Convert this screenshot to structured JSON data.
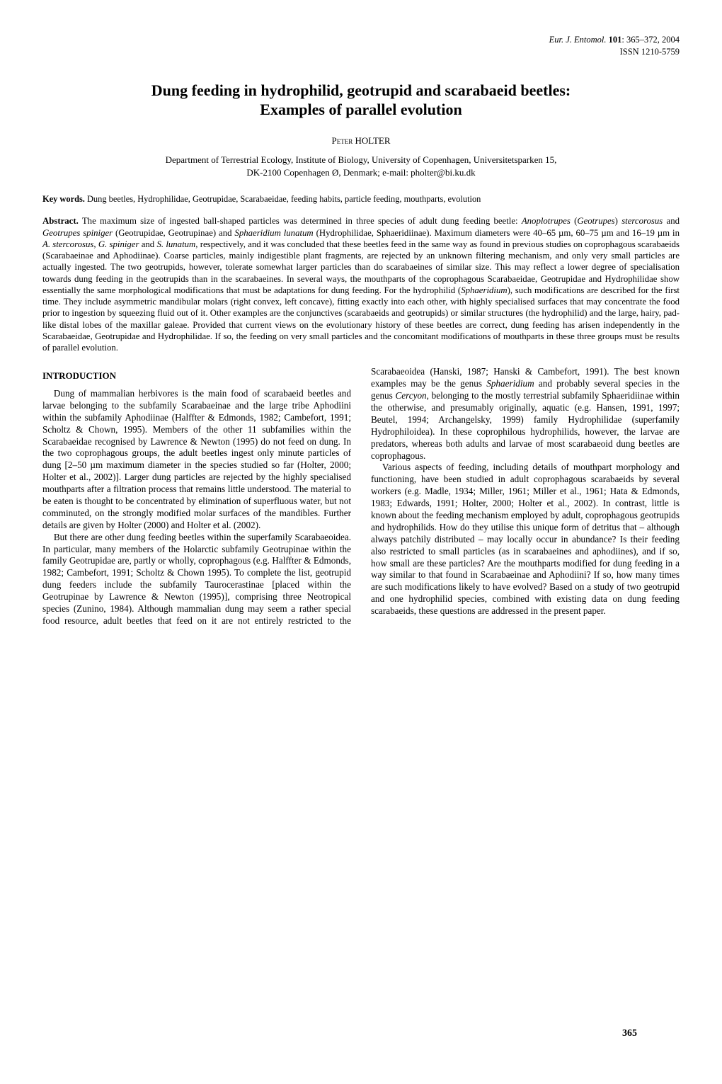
{
  "meta": {
    "journal": "Eur. J. Entomol.",
    "volume": "101",
    "pages": "365–372, 2004",
    "issn": "ISSN 1210-5759"
  },
  "title_line1": "Dung feeding in hydrophilid, geotrupid and scarabaeid beetles:",
  "title_line2": "Examples of parallel evolution",
  "author_first": "Peter",
  "author_last": "HOLTER",
  "affiliation_line1": "Department of Terrestrial Ecology, Institute of Biology, University of Copenhagen, Universitetsparken 15,",
  "affiliation_line2": "DK-2100 Copenhagen Ø, Denmark; e-mail: pholter@bi.ku.dk",
  "keywords_label": "Key words.",
  "keywords_text": " Dung beetles, Hydrophilidae, Geotrupidae, Scarabaeidae, feeding habits, particle feeding, mouthparts, evolution",
  "abstract_label": "Abstract.",
  "abstract_html": " The maximum size of ingested ball-shaped particles was determined in three species of adult dung feeding beetle: <span class=\"italic\">Anoplotrupes</span> (<span class=\"italic\">Geotrupes</span>) <span class=\"italic\">stercorosus</span> and <span class=\"italic\">Geotrupes spiniger</span> (Geotrupidae, Geotrupinae) and <span class=\"italic\">Sphaeridium lunatum</span> (Hydrophilidae, Sphaeridiinae). Maximum diameters were 40–65 µm, 60–75 µm and 16–19 µm in <span class=\"italic\">A. stercorosus</span>, <span class=\"italic\">G. spiniger</span> and <span class=\"italic\">S. lunatum</span>, respectively, and it was concluded that these beetles feed in the same way as found in previous studies on coprophagous scarabaeids (Scarabaeinae and Aphodiinae). Coarse particles, mainly indigestible plant fragments, are rejected by an unknown filtering mechanism, and only very small particles are actually ingested. The two geotrupids, however, tolerate somewhat larger particles than do scarabaeines of similar size. This may reflect a lower degree of specialisation towards dung feeding in the geotrupids than in the scarabaeines. In several ways, the mouthparts of the coprophagous Scarabaeidae, Geotrupidae and Hydrophilidae show essentially the same morphological modifications that must be adaptations for dung feeding. For the hydrophilid (<span class=\"italic\">Sphaeridium</span>), such modifications are described for the first time. They include asymmetric mandibular molars (right convex, left concave), fitting exactly into each other, with highly specialised surfaces that may concentrate the food prior to ingestion by squeezing fluid out of it. Other examples are the conjunctives (scarabaeids and geotrupids) or similar structures (the hydrophilid) and the large, hairy, pad-like distal lobes of the maxillar galeae. Provided that current views on the evolutionary history of these beetles are correct, dung feeding has arisen independently in the Scarabaeidae, Geotrupidae and Hydrophilidae. If so, the feeding on very small particles and the concomitant modifications of mouthparts in these three groups must be results of parallel evolution.",
  "section_heading": "INTRODUCTION",
  "body": {
    "p1": "Dung of mammalian herbivores is the main food of scarabaeid beetles and larvae belonging to the subfamily Scarabaeinae and the large tribe Aphodiini within the subfamily Aphodiinae (Halffter & Edmonds, 1982; Cambefort, 1991; Scholtz & Chown, 1995). Members of the other 11 subfamilies within the Scarabaeidae recognised by Lawrence & Newton (1995) do not feed on dung. In the two coprophagous groups, the adult beetles ingest only minute particles of dung [2–50 µm maximum diameter in the species studied so far (Holter, 2000; Holter et al., 2002)]. Larger dung particles are rejected by the highly specialised mouthparts after a filtration process that remains little understood. The material to be eaten is thought to be concentrated by elimination of superfluous water, but not comminuted, on the strongly modified molar surfaces of the mandibles. Further details are given by Holter (2000) and Holter et al. (2002).",
    "p2": "But there are other dung feeding beetles within the superfamily Scarabaeoidea. In particular, many members of the Holarctic subfamily Geotrupinae within the family Geotrupidae are, partly or wholly, coprophagous (e.g. Halffter & Edmonds, 1982; Cambefort, 1991; Scholtz & Chown 1995). To complete the list, geotrupid dung feeders include the subfamily Taurocerastinae [placed within the Geotrupinae by Lawrence & Newton (1995)], comprising three Neotropical species (Zunino, 1984). Although mammalian dung may seem a rather special food resource, adult beetles that feed on it are not entirely restricted to the Scarabaeoidea (Hanski, 1987; Hanski & Cambefort, 1991). The best known examples may be the genus <span class=\"italic\">Sphaeridium</span> and probably several species in the genus <span class=\"italic\">Cercyon</span>, belonging to the mostly terrestrial subfamily Sphaeridiinae within the otherwise, and presumably originally, aquatic (e.g. Hansen, 1991, 1997; Beutel, 1994; Archangelsky, 1999) family Hydrophilidae (superfamily Hydrophiloidea). In these coprophilous hydrophilids, however, the larvae are predators, whereas both adults and larvae of most scarabaeoid dung beetles are coprophagous.",
    "p3": "Various aspects of feeding, including details of mouthpart morphology and functioning, have been studied in adult coprophagous scarabaeids by several workers (e.g. Madle, 1934; Miller, 1961; Miller et al., 1961; Hata & Edmonds, 1983; Edwards, 1991; Holter, 2000; Holter et al., 2002). In contrast, little is known about the feeding mechanism employed by adult, coprophagous geotrupids and hydrophilids. How do they utilise this unique form of detritus that – although always patchily distributed – may locally occur in abundance? Is their feeding also restricted to small particles (as in scarabaeines and aphodiines), and if so, how small are these particles? Are the mouthparts modified for dung feeding in a way similar to that found in Scarabaeinae and Aphodiini? If so, how many times are such modifications likely to have evolved? Based on a study of two geotrupid and one hydrophilid species, combined with existing data on dung feeding scarabaeids, these questions are addressed in the present paper."
  },
  "page_number": "365"
}
